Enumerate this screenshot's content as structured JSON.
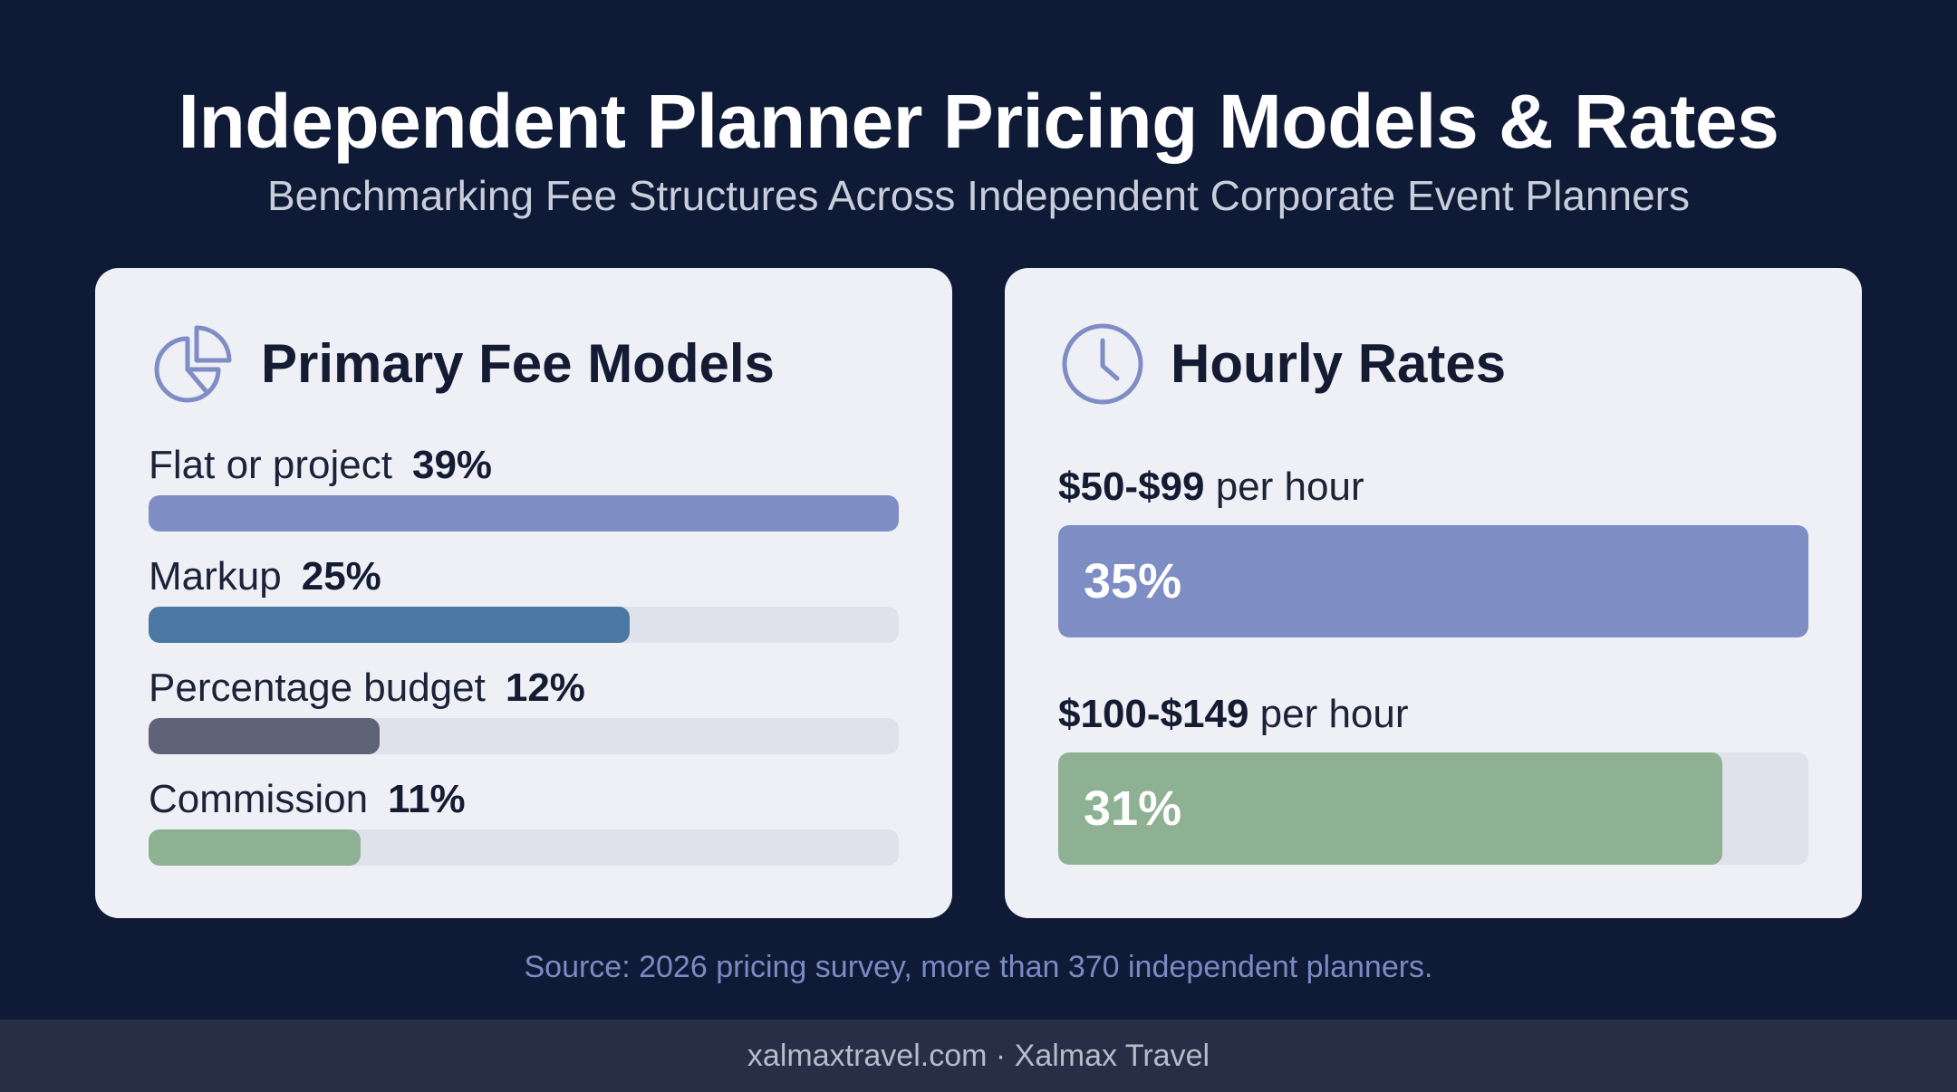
{
  "title": "Independent Planner Pricing Models & Rates",
  "subtitle": "Benchmarking Fee Structures Across Independent Corporate Event Planners",
  "source": "Source: 2026 pricing survey, more than 370 independent planners.",
  "footer": "xalmaxtravel.com · Xalmax Travel",
  "chart_data": [
    {
      "type": "bar",
      "title": "Primary Fee Models",
      "icon": "pie-chart-icon",
      "categories": [
        "Flat or project",
        "Markup",
        "Percentage budget",
        "Commission"
      ],
      "values": [
        39,
        25,
        12,
        11
      ],
      "labels": [
        "39%",
        "25%",
        "12%",
        "11%"
      ],
      "colors": [
        "#7f8dc5",
        "#4a78a3",
        "#5f6378",
        "#8eb193"
      ],
      "ylim": [
        0,
        39
      ]
    },
    {
      "type": "bar",
      "title": "Hourly Rates",
      "icon": "clock-icon",
      "categories": [
        {
          "range": "$50-$99",
          "unit": " per hour"
        },
        {
          "range": "$100-$149",
          "unit": " per hour"
        }
      ],
      "values": [
        35,
        31
      ],
      "labels": [
        "35%",
        "31%"
      ],
      "colors": [
        "#7f8dc5",
        "#8eb193"
      ],
      "ylim": [
        0,
        35
      ]
    }
  ]
}
